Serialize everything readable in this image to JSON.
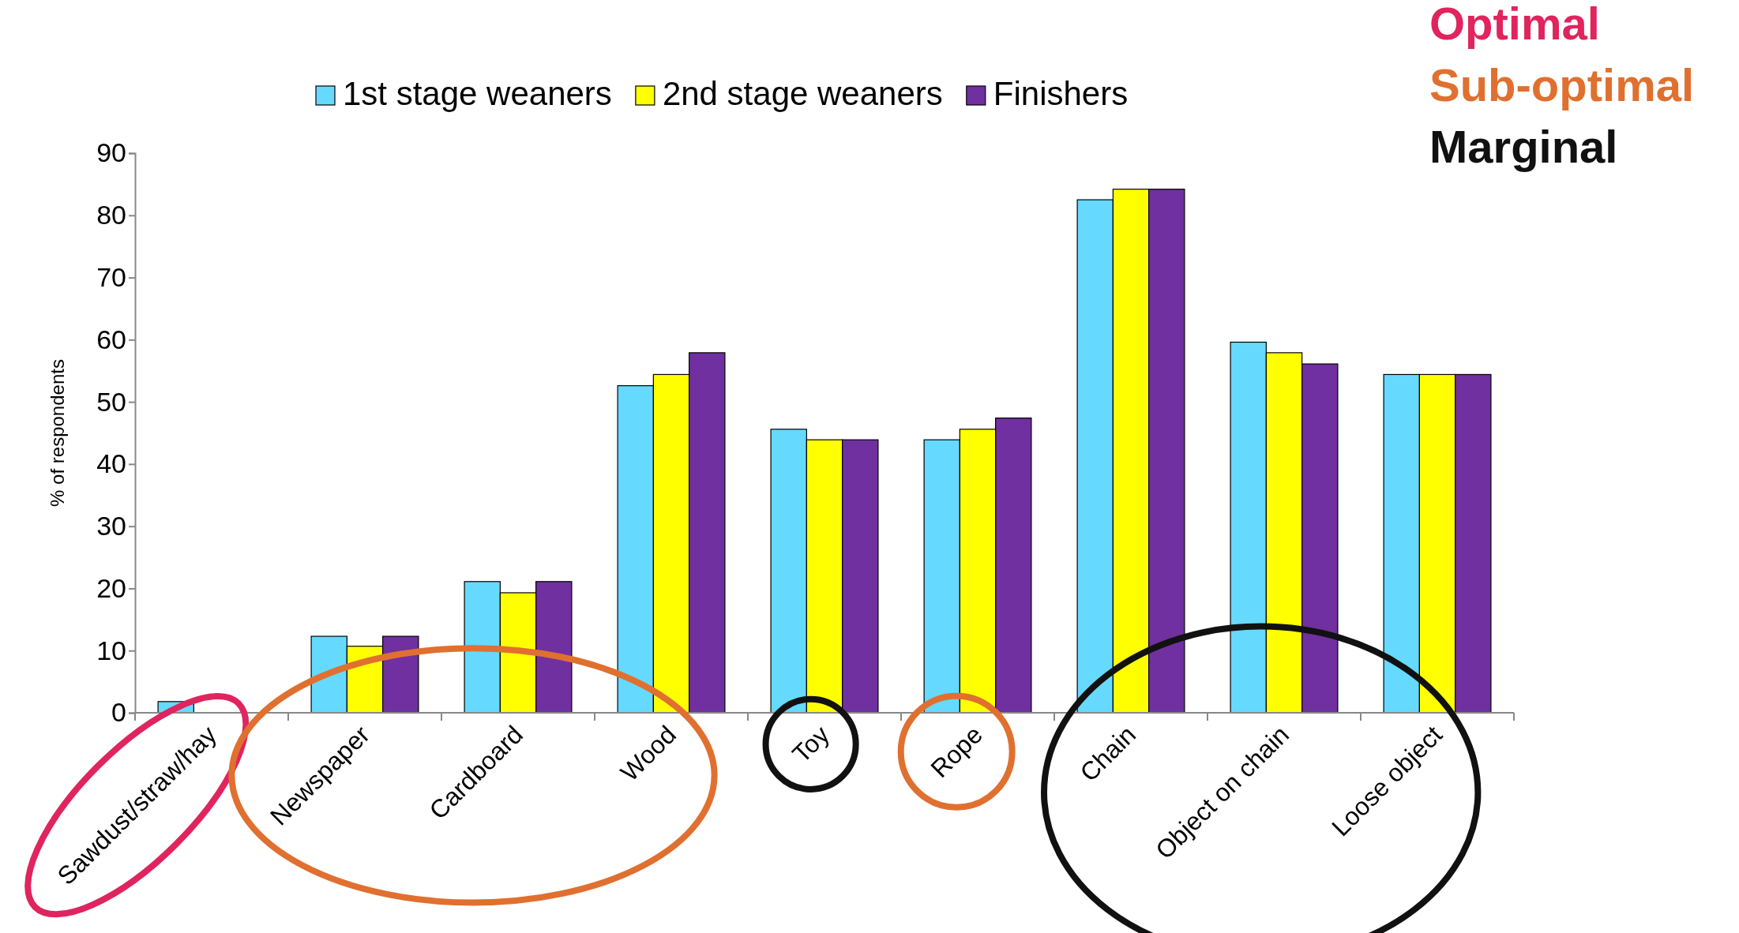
{
  "chart_data": {
    "type": "bar",
    "ylabel": "% of respondents",
    "categories": [
      "Sawdust/straw/hay",
      "Newspaper",
      "Cardboard",
      "Wood",
      "Toy",
      "Rope",
      "Chain",
      "Object on chain",
      "Loose object"
    ],
    "series": [
      {
        "name": "1st stage weaners",
        "color": "#66d9ff",
        "values": [
          1.8,
          12.3,
          21.1,
          52.6,
          45.6,
          43.9,
          82.5,
          59.6,
          54.4
        ]
      },
      {
        "name": "2nd stage weaners",
        "color": "#ffff00",
        "values": [
          0,
          10.7,
          19.3,
          54.4,
          43.9,
          45.6,
          84.2,
          57.9,
          54.4
        ]
      },
      {
        "name": "Finishers",
        "color": "#7030a0",
        "values": [
          0,
          12.3,
          21.1,
          57.9,
          43.9,
          47.4,
          84.2,
          56.1,
          54.4
        ]
      }
    ],
    "ylim": [
      0,
      90
    ],
    "yticks": [
      0,
      10,
      20,
      30,
      40,
      50,
      60,
      70,
      80,
      90
    ],
    "grid": false,
    "legend": "top",
    "annotations": [
      "Optimal",
      "Sub-optimal",
      "Marginal"
    ]
  }
}
